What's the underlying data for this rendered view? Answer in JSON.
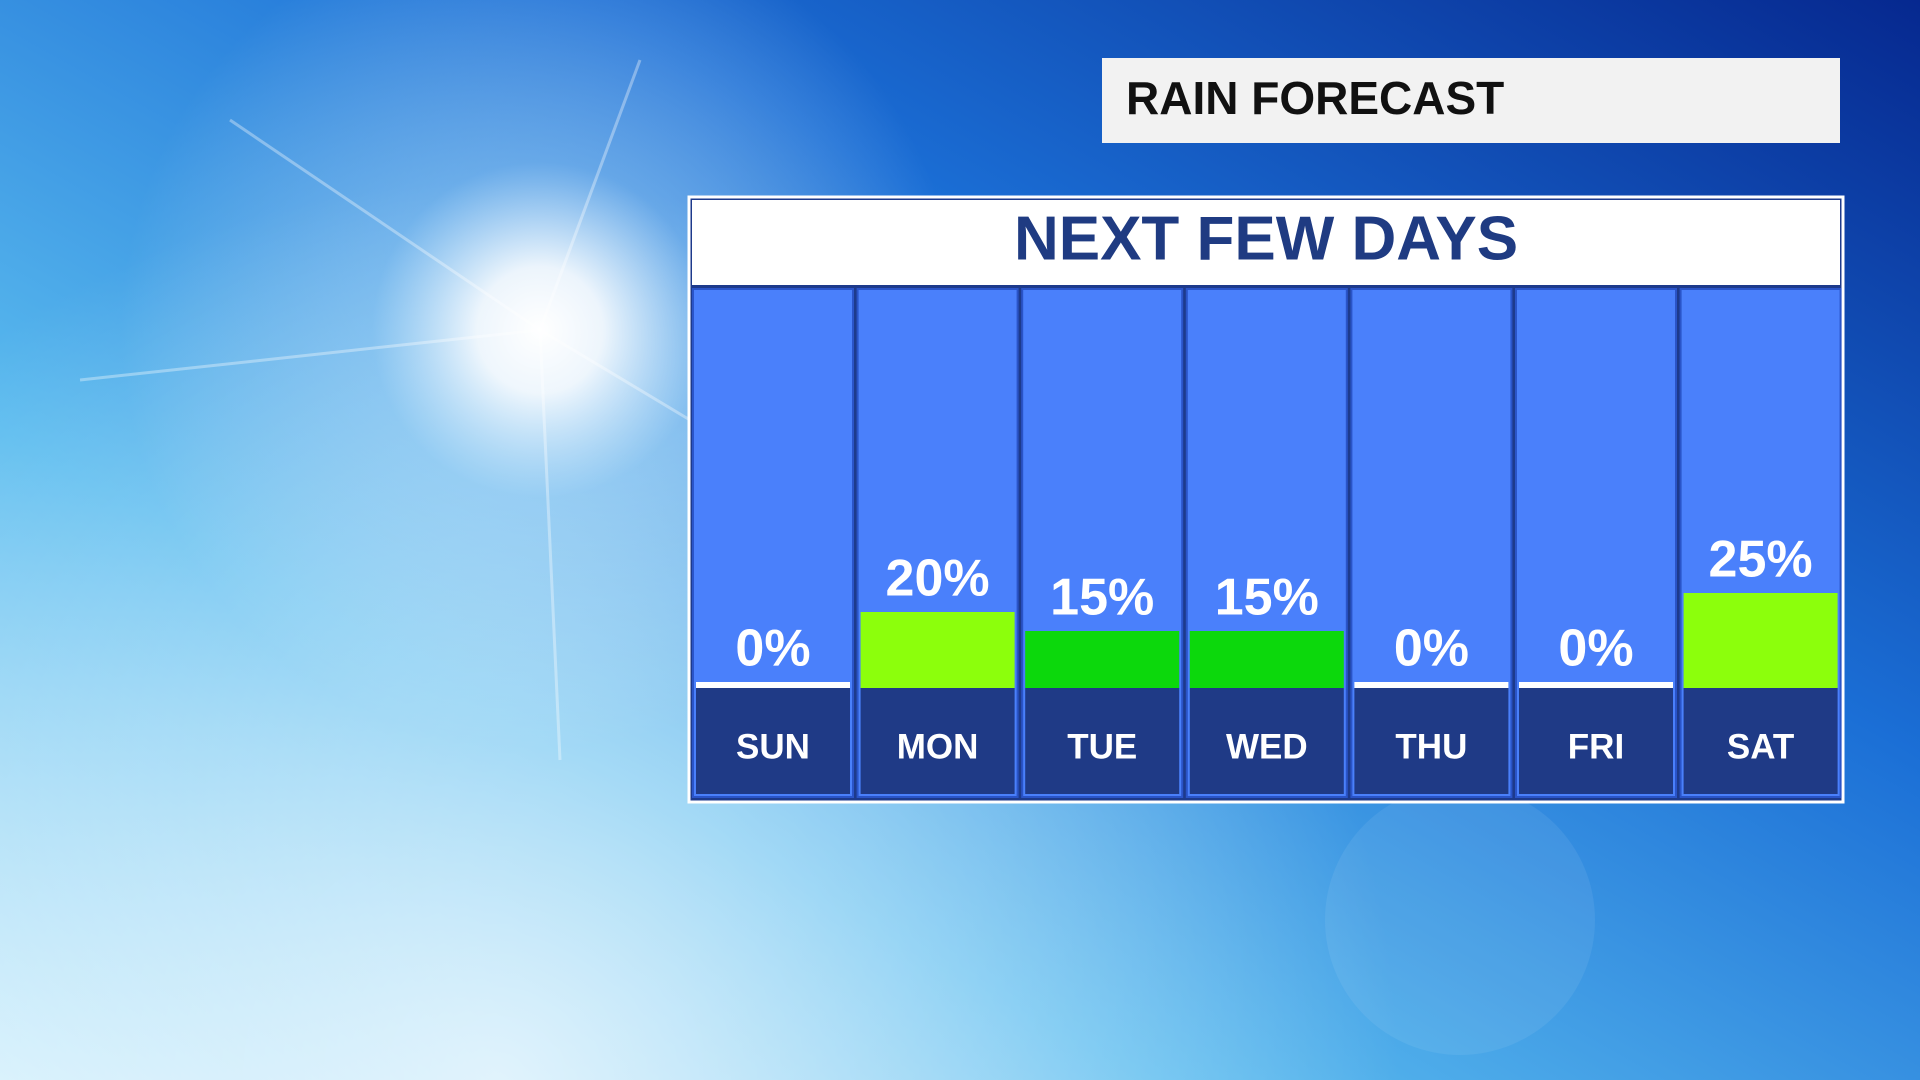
{
  "chart_data": {
    "type": "bar",
    "title": "RAIN FORECAST",
    "subtitle": "NEXT FEW DAYS",
    "categories": [
      "SUN",
      "MON",
      "TUE",
      "WED",
      "THU",
      "FRI",
      "SAT"
    ],
    "values": [
      0,
      20,
      15,
      15,
      0,
      0,
      25
    ],
    "value_labels": [
      "0%",
      "20%",
      "15%",
      "15%",
      "0%",
      "0%",
      "25%"
    ],
    "colors": [
      "#ffffff",
      "#8cff0c",
      "#0cd80c",
      "#0cd80c",
      "#ffffff",
      "#ffffff",
      "#8cff0c"
    ]
  }
}
